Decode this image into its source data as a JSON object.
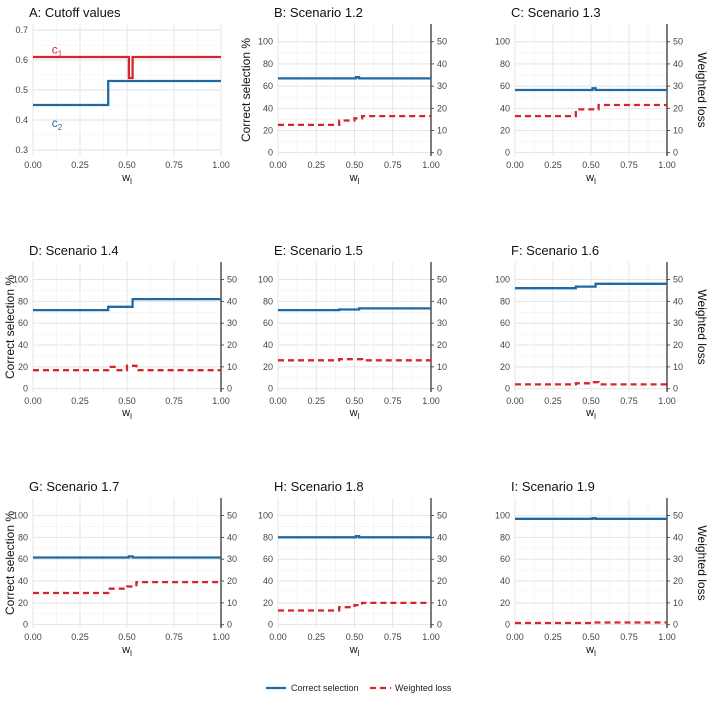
{
  "colors": {
    "correct": "#1f6aa5",
    "loss": "#d7252f",
    "c1": "#d7252f",
    "c2": "#1f6aa5"
  },
  "x_label": "w",
  "x_label_sub": "l",
  "x_ticks": [
    0,
    0.25,
    0.5,
    0.75,
    1
  ],
  "x_tick_labels": [
    "0.00",
    "0.25",
    "0.50",
    "0.75",
    "1.00"
  ],
  "left_axis_title": "Correct selection %",
  "right_axis_title": "Weighted loss",
  "legend": {
    "correct_label": "Correct selection",
    "loss_label": "Weighted loss"
  },
  "chart_data": [
    {
      "type": "line",
      "title": "A: Cutoff values",
      "ylim": [
        0.28,
        0.72
      ],
      "yticks": [
        0.3,
        0.4,
        0.5,
        0.6,
        0.7
      ],
      "ytick_labels": [
        "0.3",
        "0.4",
        "0.5",
        "0.6",
        "0.7"
      ],
      "series": [
        {
          "name": "c",
          "sub": "1",
          "color": "c1",
          "label_x": 0.1,
          "label_y": 0.635,
          "points": [
            [
              0,
              0.61
            ],
            [
              0.51,
              0.61
            ],
            [
              0.51,
              0.54
            ],
            [
              0.53,
              0.54
            ],
            [
              0.53,
              0.61
            ],
            [
              1,
              0.61
            ]
          ]
        },
        {
          "name": "c",
          "sub": "2",
          "color": "c2",
          "label_x": 0.1,
          "label_y": 0.39,
          "points": [
            [
              0,
              0.45
            ],
            [
              0.4,
              0.45
            ],
            [
              0.4,
              0.53
            ],
            [
              0.52,
              0.53
            ],
            [
              1,
              0.53
            ]
          ]
        }
      ]
    },
    {
      "type": "line",
      "title": "B: Scenario 1.2",
      "ylim": [
        -3,
        116
      ],
      "yticks": [
        0,
        20,
        40,
        60,
        80,
        100
      ],
      "ytick_labels": [
        "0",
        "20",
        "40",
        "60",
        "80",
        "100"
      ],
      "y2ticks": [
        0,
        10,
        20,
        30,
        40,
        50
      ],
      "y2tick_labels": [
        "0",
        "10",
        "20",
        "30",
        "40",
        "50"
      ],
      "series": [
        {
          "name": "Correct selection",
          "points": [
            [
              0,
              67
            ],
            [
              0.51,
              67
            ],
            [
              0.51,
              68
            ],
            [
              0.53,
              68
            ],
            [
              0.53,
              67
            ],
            [
              1,
              67
            ]
          ]
        },
        {
          "name": "Weighted loss",
          "points": [
            [
              0,
              12.5
            ],
            [
              0.4,
              12.5
            ],
            [
              0.4,
              14.5
            ],
            [
              0.5,
              14.5
            ],
            [
              0.5,
              15.5
            ],
            [
              0.55,
              15.5
            ],
            [
              0.55,
              16.5
            ],
            [
              1,
              16.5
            ]
          ]
        }
      ]
    },
    {
      "type": "line",
      "title": "C: Scenario 1.3",
      "ylim": [
        -3,
        116
      ],
      "yticks": [
        0,
        20,
        40,
        60,
        80,
        100
      ],
      "ytick_labels": [
        "0",
        "20",
        "40",
        "60",
        "80",
        "100"
      ],
      "y2ticks": [
        0,
        10,
        20,
        30,
        40,
        50
      ],
      "y2tick_labels": [
        "0",
        "10",
        "20",
        "30",
        "40",
        "50"
      ],
      "series": [
        {
          "name": "Correct selection",
          "points": [
            [
              0,
              56.5
            ],
            [
              0.51,
              56.5
            ],
            [
              0.51,
              58
            ],
            [
              0.53,
              58
            ],
            [
              0.53,
              56.5
            ],
            [
              1,
              56.5
            ]
          ]
        },
        {
          "name": "Weighted loss",
          "points": [
            [
              0,
              16.5
            ],
            [
              0.4,
              16.5
            ],
            [
              0.4,
              19.5
            ],
            [
              0.55,
              19.5
            ],
            [
              0.55,
              21.5
            ],
            [
              1,
              21.5
            ]
          ]
        }
      ]
    },
    {
      "type": "line",
      "title": "D: Scenario 1.4",
      "ylim": [
        -3,
        116
      ],
      "yticks": [
        0,
        20,
        40,
        60,
        80,
        100
      ],
      "ytick_labels": [
        "0",
        "20",
        "40",
        "60",
        "80",
        "100"
      ],
      "y2ticks": [
        0,
        10,
        20,
        30,
        40,
        50
      ],
      "y2tick_labels": [
        "0",
        "10",
        "20",
        "30",
        "40",
        "50"
      ],
      "series": [
        {
          "name": "Correct selection",
          "points": [
            [
              0,
              72
            ],
            [
              0.4,
              72
            ],
            [
              0.4,
              75
            ],
            [
              0.53,
              75
            ],
            [
              0.53,
              82
            ],
            [
              1,
              82
            ]
          ]
        },
        {
          "name": "Weighted loss",
          "points": [
            [
              0,
              8.5
            ],
            [
              0.4,
              8.5
            ],
            [
              0.4,
              10
            ],
            [
              0.45,
              10
            ],
            [
              0.45,
              8.5
            ],
            [
              0.5,
              8.5
            ],
            [
              0.5,
              10.5
            ],
            [
              0.55,
              10.5
            ],
            [
              0.55,
              8.5
            ],
            [
              1,
              8.5
            ]
          ]
        }
      ]
    },
    {
      "type": "line",
      "title": "E: Scenario 1.5",
      "ylim": [
        -3,
        116
      ],
      "yticks": [
        0,
        20,
        40,
        60,
        80,
        100
      ],
      "ytick_labels": [
        "0",
        "20",
        "40",
        "60",
        "80",
        "100"
      ],
      "y2ticks": [
        0,
        10,
        20,
        30,
        40,
        50
      ],
      "y2tick_labels": [
        "0",
        "10",
        "20",
        "30",
        "40",
        "50"
      ],
      "series": [
        {
          "name": "Correct selection",
          "points": [
            [
              0,
              72
            ],
            [
              0.4,
              72
            ],
            [
              0.4,
              72.5
            ],
            [
              0.53,
              72.5
            ],
            [
              0.53,
              73.5
            ],
            [
              1,
              73.5
            ]
          ]
        },
        {
          "name": "Weighted loss",
          "points": [
            [
              0,
              13
            ],
            [
              0.4,
              13
            ],
            [
              0.4,
              13.5
            ],
            [
              0.55,
              13.5
            ],
            [
              0.55,
              13
            ],
            [
              1,
              13
            ]
          ]
        }
      ]
    },
    {
      "type": "line",
      "title": "F: Scenario 1.6",
      "ylim": [
        -3,
        116
      ],
      "yticks": [
        0,
        20,
        40,
        60,
        80,
        100
      ],
      "ytick_labels": [
        "0",
        "20",
        "40",
        "60",
        "80",
        "100"
      ],
      "y2ticks": [
        0,
        10,
        20,
        30,
        40,
        50
      ],
      "y2tick_labels": [
        "0",
        "10",
        "20",
        "30",
        "40",
        "50"
      ],
      "series": [
        {
          "name": "Correct selection",
          "points": [
            [
              0,
              92
            ],
            [
              0.4,
              92
            ],
            [
              0.4,
              93.5
            ],
            [
              0.53,
              93.5
            ],
            [
              0.53,
              96
            ],
            [
              1,
              96
            ]
          ]
        },
        {
          "name": "Weighted loss",
          "points": [
            [
              0,
              2
            ],
            [
              0.4,
              2
            ],
            [
              0.4,
              2.5
            ],
            [
              0.5,
              2.5
            ],
            [
              0.5,
              3
            ],
            [
              0.55,
              3
            ],
            [
              0.55,
              2
            ],
            [
              1,
              2
            ]
          ]
        }
      ]
    },
    {
      "type": "line",
      "title": "G: Scenario 1.7",
      "ylim": [
        -3,
        116
      ],
      "yticks": [
        0,
        20,
        40,
        60,
        80,
        100
      ],
      "ytick_labels": [
        "0",
        "20",
        "40",
        "60",
        "80",
        "100"
      ],
      "y2ticks": [
        0,
        10,
        20,
        30,
        40,
        50
      ],
      "y2tick_labels": [
        "0",
        "10",
        "20",
        "30",
        "40",
        "50"
      ],
      "series": [
        {
          "name": "Correct selection",
          "points": [
            [
              0,
              61.5
            ],
            [
              0.51,
              61.5
            ],
            [
              0.51,
              62.5
            ],
            [
              0.53,
              62.5
            ],
            [
              0.53,
              61.5
            ],
            [
              1,
              61.5
            ]
          ]
        },
        {
          "name": "Weighted loss",
          "points": [
            [
              0,
              14.5
            ],
            [
              0.4,
              14.5
            ],
            [
              0.4,
              16.5
            ],
            [
              0.5,
              16.5
            ],
            [
              0.5,
              17.5
            ],
            [
              0.55,
              17.5
            ],
            [
              0.55,
              19.5
            ],
            [
              1,
              19.5
            ]
          ]
        }
      ]
    },
    {
      "type": "line",
      "title": "H: Scenario 1.8",
      "ylim": [
        -3,
        116
      ],
      "yticks": [
        0,
        20,
        40,
        60,
        80,
        100
      ],
      "ytick_labels": [
        "0",
        "20",
        "40",
        "60",
        "80",
        "100"
      ],
      "y2ticks": [
        0,
        10,
        20,
        30,
        40,
        50
      ],
      "y2tick_labels": [
        "0",
        "10",
        "20",
        "30",
        "40",
        "50"
      ],
      "series": [
        {
          "name": "Correct selection",
          "points": [
            [
              0,
              80
            ],
            [
              0.51,
              80
            ],
            [
              0.51,
              81
            ],
            [
              0.53,
              81
            ],
            [
              0.53,
              80
            ],
            [
              1,
              80
            ]
          ]
        },
        {
          "name": "Weighted loss",
          "points": [
            [
              0,
              6.5
            ],
            [
              0.4,
              6.5
            ],
            [
              0.4,
              8
            ],
            [
              0.5,
              8
            ],
            [
              0.5,
              9
            ],
            [
              0.55,
              9
            ],
            [
              0.55,
              10
            ],
            [
              1,
              10
            ]
          ]
        }
      ]
    },
    {
      "type": "line",
      "title": "I: Scenario 1.9",
      "ylim": [
        -3,
        116
      ],
      "yticks": [
        0,
        20,
        40,
        60,
        80,
        100
      ],
      "ytick_labels": [
        "0",
        "20",
        "40",
        "60",
        "80",
        "100"
      ],
      "y2ticks": [
        0,
        10,
        20,
        30,
        40,
        50
      ],
      "y2tick_labels": [
        "0",
        "10",
        "20",
        "30",
        "40",
        "50"
      ],
      "series": [
        {
          "name": "Correct selection",
          "points": [
            [
              0,
              97
            ],
            [
              0.51,
              97
            ],
            [
              0.51,
              97.5
            ],
            [
              0.53,
              97.5
            ],
            [
              0.53,
              97
            ],
            [
              1,
              97
            ]
          ]
        },
        {
          "name": "Weighted loss",
          "points": [
            [
              0,
              0.8
            ],
            [
              0.5,
              0.8
            ],
            [
              0.5,
              1
            ],
            [
              1,
              1
            ]
          ]
        }
      ]
    }
  ]
}
